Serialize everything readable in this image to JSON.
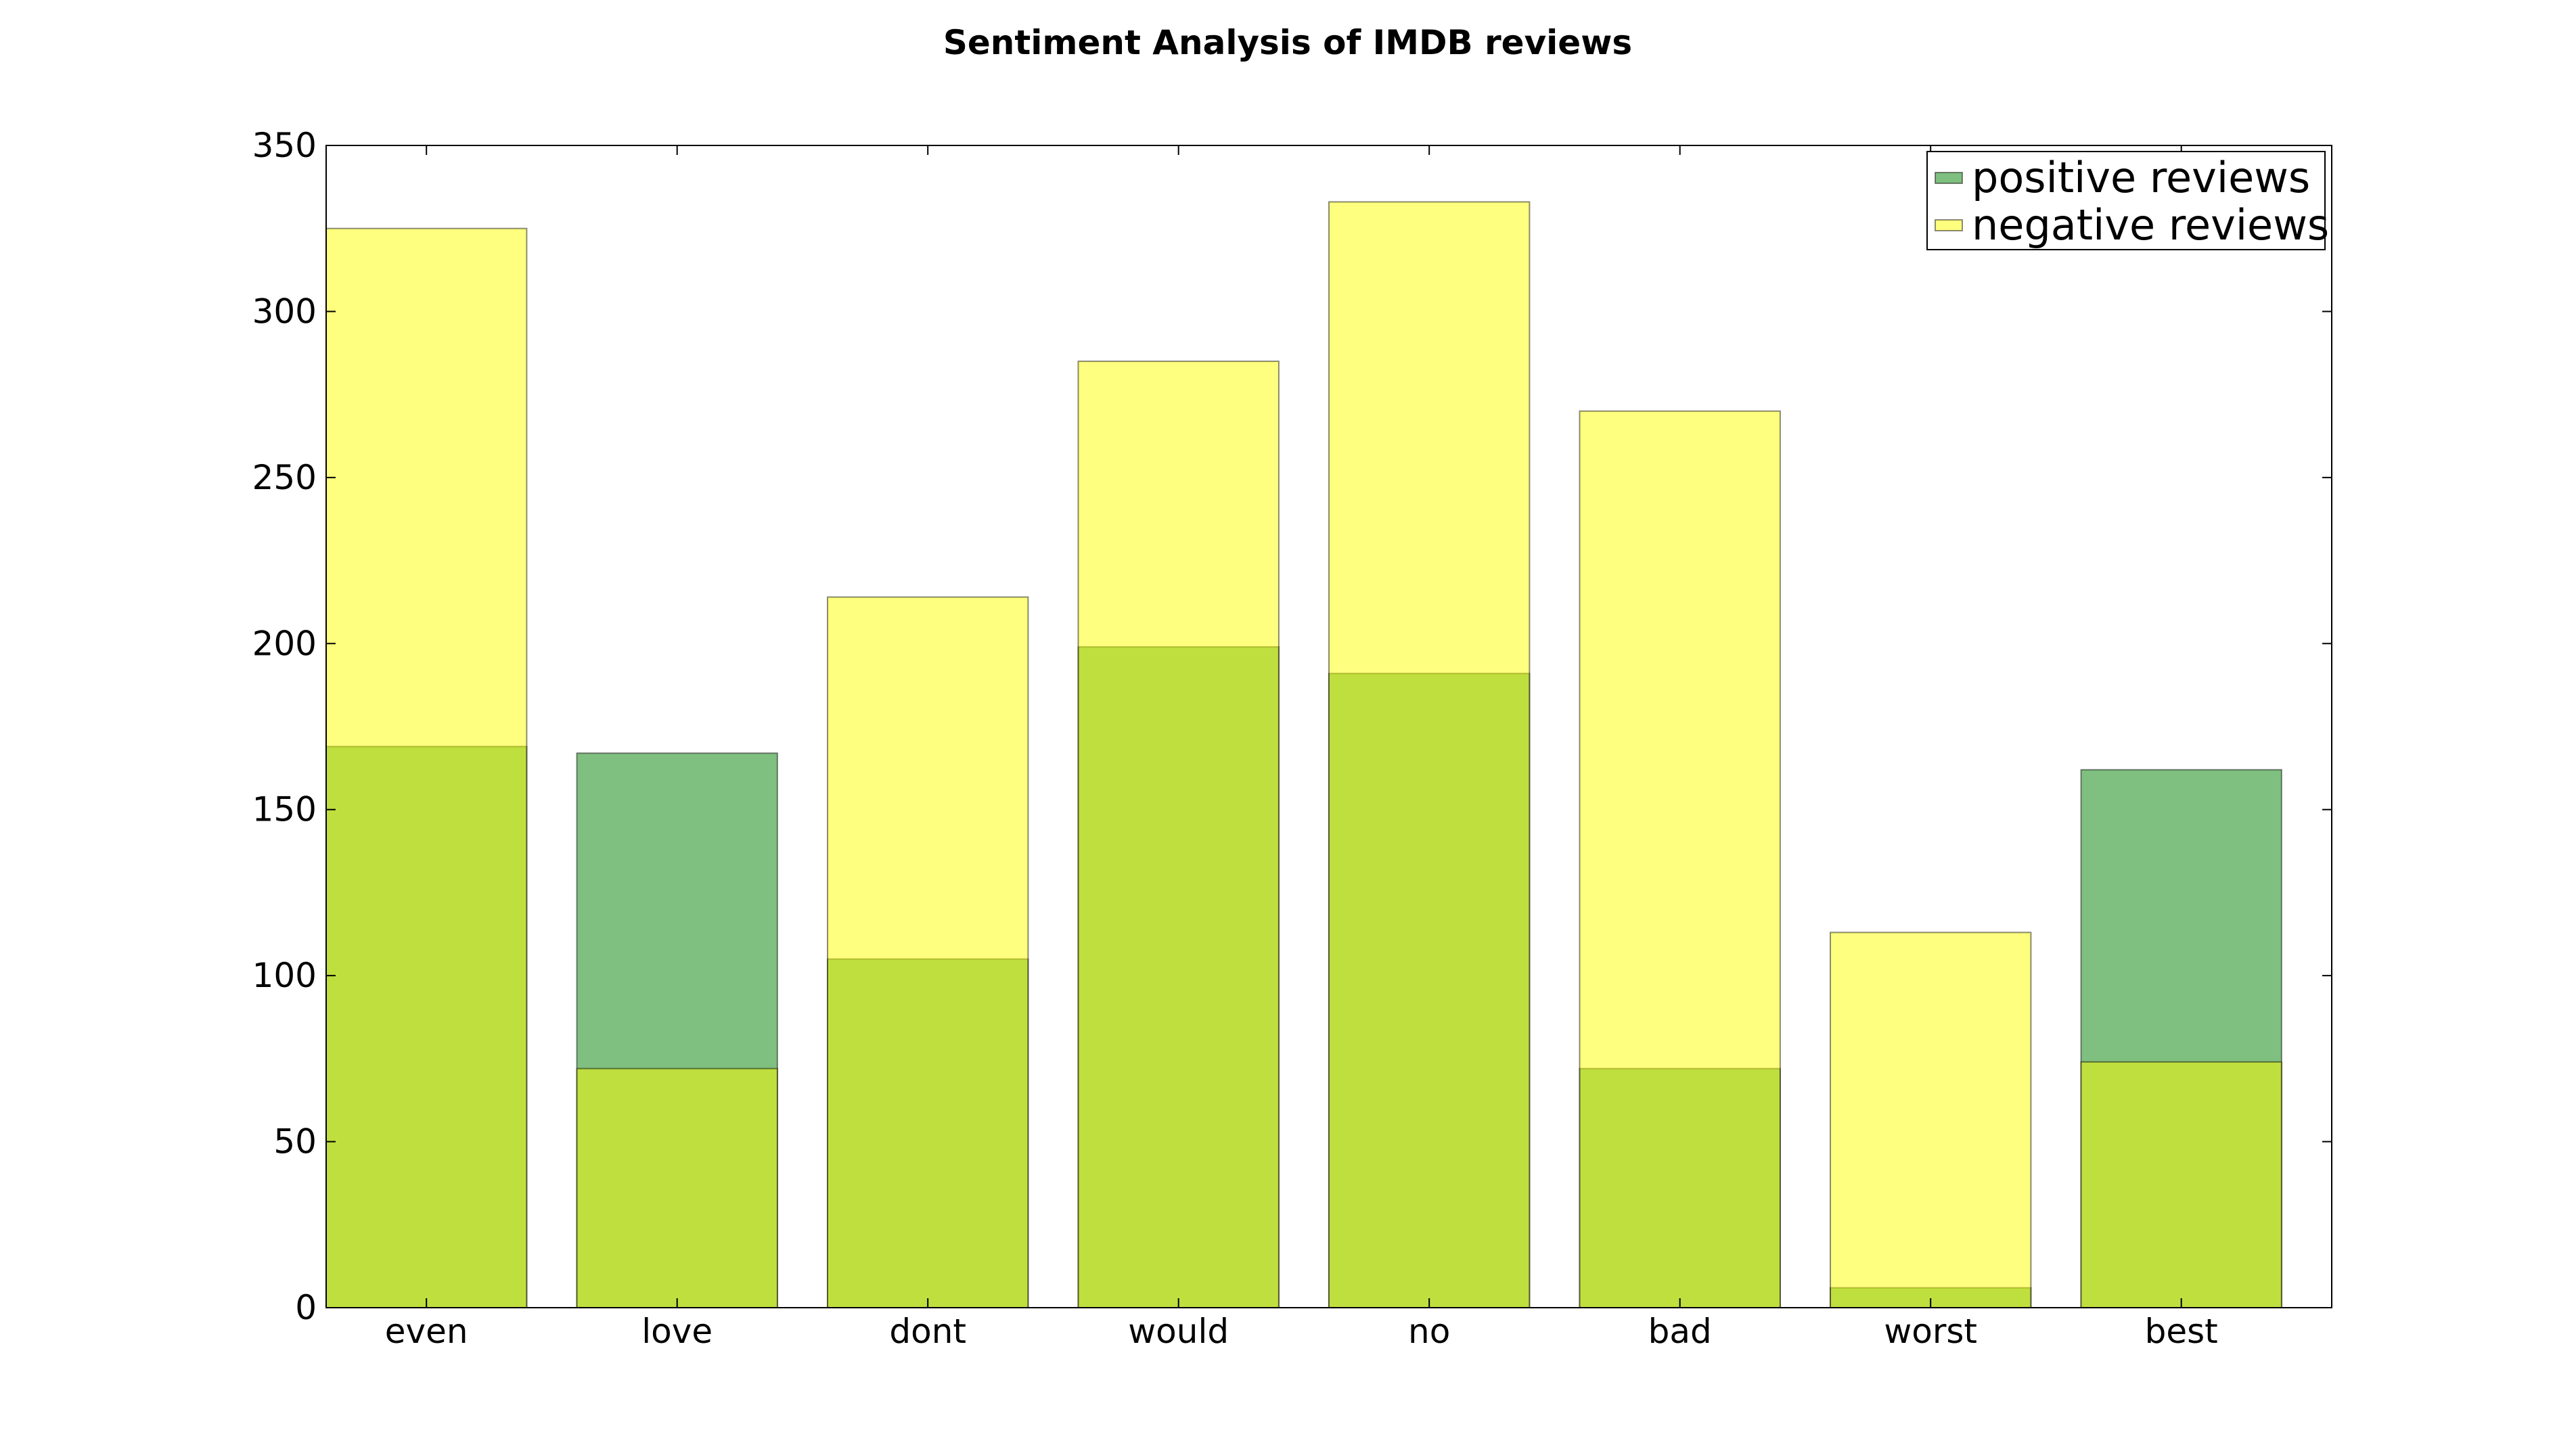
{
  "chart_data": {
    "type": "bar",
    "title": "Sentiment Analysis of IMDB reviews",
    "xlabel": "",
    "ylabel": "",
    "categories": [
      "even",
      "love",
      "dont",
      "would",
      "no",
      "bad",
      "worst",
      "best"
    ],
    "series": [
      {
        "name": "positive reviews",
        "values": [
          169,
          167,
          105,
          199,
          191,
          72,
          6,
          162
        ],
        "color": "#008000",
        "opacity": 0.5
      },
      {
        "name": "negative reviews",
        "values": [
          325,
          72,
          214,
          285,
          333,
          270,
          113,
          74
        ],
        "color": "#ffff00",
        "opacity": 0.5
      }
    ],
    "overlap": true,
    "ylim": [
      0,
      350
    ],
    "yticks": [
      0,
      50,
      100,
      150,
      200,
      250,
      300,
      350
    ],
    "grid": false,
    "legend_position": "top-right"
  }
}
